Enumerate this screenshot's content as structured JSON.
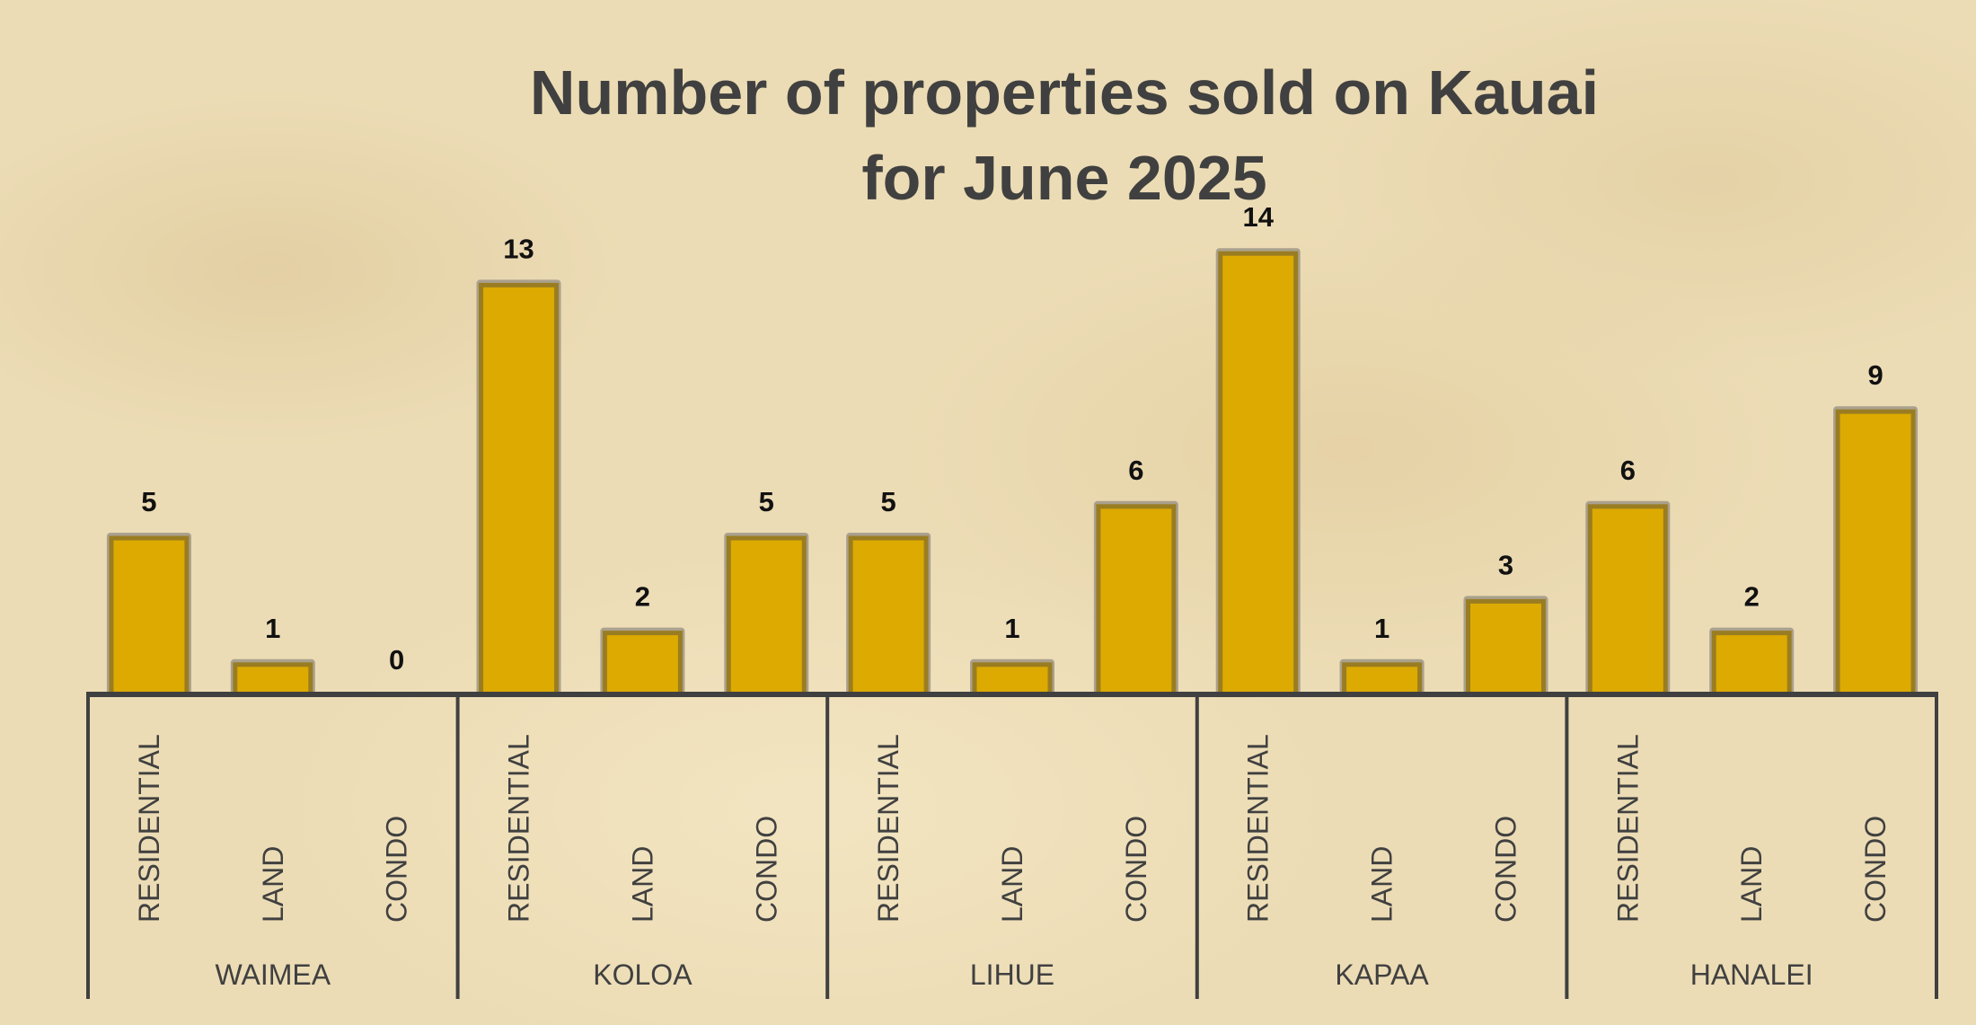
{
  "chart_data": {
    "type": "bar",
    "title": [
      "Number of properties sold on Kauai",
      "for  June 2025"
    ],
    "groups": [
      "WAIMEA",
      "KOLOA",
      "LIHUE",
      "KAPAA",
      "HANALEI"
    ],
    "categories": [
      "RESIDENTIAL",
      "LAND",
      "CONDO"
    ],
    "values": [
      [
        5,
        1,
        0
      ],
      [
        13,
        2,
        5
      ],
      [
        5,
        1,
        6
      ],
      [
        14,
        1,
        3
      ],
      [
        6,
        2,
        9
      ]
    ],
    "xlabel": "",
    "ylabel": "",
    "ylim": [
      0,
      15
    ],
    "grid": false,
    "data_labels": true,
    "colors": {
      "bar": "#dcaa00",
      "bar_border": "#9a7d22",
      "axis": "#404040"
    }
  }
}
